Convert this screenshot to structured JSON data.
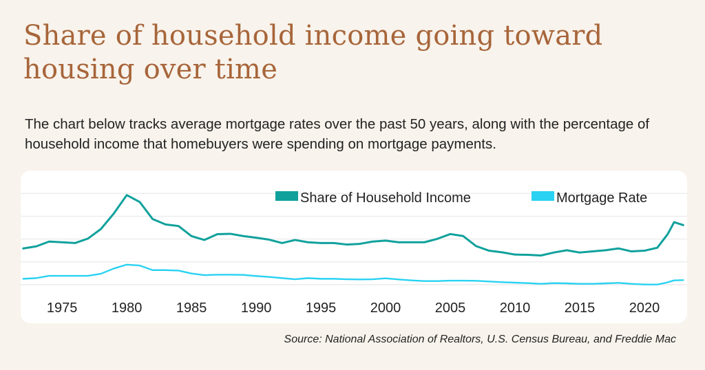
{
  "page": {
    "title": "Share of household income going toward housing over time",
    "subtitle": "The chart below tracks average mortgage rates over the past 50 years, along with the percentage of household income that homebuyers were spending on mortgage payments.",
    "source": "Source: National Association of Realtors, U.S. Census Bureau, and Freddie Mac"
  },
  "chart_data": {
    "type": "line",
    "title": "Share of household income going toward housing over time",
    "xlabel": "",
    "ylabel": "",
    "x_ticks": [
      "1975",
      "1980",
      "1985",
      "1990",
      "1995",
      "2000",
      "2005",
      "2010",
      "2015",
      "2020"
    ],
    "xlim": [
      1971.8,
      2023.3
    ],
    "ylim": [
      0,
      1
    ],
    "grid": true,
    "legend_position": "top-right",
    "series": [
      {
        "name": "Share of Household Income",
        "color": "#10a19c",
        "points": [
          {
            "x": 1972,
            "y": 0.318
          },
          {
            "x": 1973,
            "y": 0.336
          },
          {
            "x": 1974,
            "y": 0.378
          },
          {
            "x": 1975,
            "y": 0.372
          },
          {
            "x": 1976,
            "y": 0.365
          },
          {
            "x": 1977,
            "y": 0.404
          },
          {
            "x": 1978,
            "y": 0.488
          },
          {
            "x": 1979,
            "y": 0.624
          },
          {
            "x": 1980,
            "y": 0.785
          },
          {
            "x": 1981,
            "y": 0.725
          },
          {
            "x": 1982,
            "y": 0.575
          },
          {
            "x": 1983,
            "y": 0.528
          },
          {
            "x": 1984,
            "y": 0.514
          },
          {
            "x": 1985,
            "y": 0.426
          },
          {
            "x": 1986,
            "y": 0.392
          },
          {
            "x": 1987,
            "y": 0.443
          },
          {
            "x": 1988,
            "y": 0.446
          },
          {
            "x": 1989,
            "y": 0.426
          },
          {
            "x": 1990,
            "y": 0.412
          },
          {
            "x": 1991,
            "y": 0.395
          },
          {
            "x": 1992,
            "y": 0.365
          },
          {
            "x": 1993,
            "y": 0.392
          },
          {
            "x": 1994,
            "y": 0.372
          },
          {
            "x": 1995,
            "y": 0.365
          },
          {
            "x": 1996,
            "y": 0.365
          },
          {
            "x": 1997,
            "y": 0.352
          },
          {
            "x": 1998,
            "y": 0.358
          },
          {
            "x": 1999,
            "y": 0.378
          },
          {
            "x": 2000,
            "y": 0.386
          },
          {
            "x": 2001,
            "y": 0.372
          },
          {
            "x": 2002,
            "y": 0.372
          },
          {
            "x": 2003,
            "y": 0.372
          },
          {
            "x": 2004,
            "y": 0.402
          },
          {
            "x": 2005,
            "y": 0.444
          },
          {
            "x": 2006,
            "y": 0.426
          },
          {
            "x": 2007,
            "y": 0.338
          },
          {
            "x": 2008,
            "y": 0.298
          },
          {
            "x": 2009,
            "y": 0.284
          },
          {
            "x": 2010,
            "y": 0.264
          },
          {
            "x": 2011,
            "y": 0.262
          },
          {
            "x": 2012,
            "y": 0.256
          },
          {
            "x": 2013,
            "y": 0.282
          },
          {
            "x": 2014,
            "y": 0.302
          },
          {
            "x": 2015,
            "y": 0.282
          },
          {
            "x": 2016,
            "y": 0.292
          },
          {
            "x": 2017,
            "y": 0.302
          },
          {
            "x": 2018,
            "y": 0.318
          },
          {
            "x": 2019,
            "y": 0.292
          },
          {
            "x": 2020,
            "y": 0.298
          },
          {
            "x": 2021,
            "y": 0.324
          },
          {
            "x": 2021.8,
            "y": 0.443
          },
          {
            "x": 2022.3,
            "y": 0.548
          },
          {
            "x": 2023,
            "y": 0.522
          }
        ]
      },
      {
        "name": "Mortgage Rate",
        "color": "#29d2f2",
        "points": [
          {
            "x": 1972,
            "y": 0.052
          },
          {
            "x": 1973,
            "y": 0.058
          },
          {
            "x": 1974,
            "y": 0.078
          },
          {
            "x": 1975,
            "y": 0.078
          },
          {
            "x": 1976,
            "y": 0.078
          },
          {
            "x": 1977,
            "y": 0.078
          },
          {
            "x": 1978,
            "y": 0.096
          },
          {
            "x": 1979,
            "y": 0.142
          },
          {
            "x": 1980,
            "y": 0.176
          },
          {
            "x": 1981,
            "y": 0.168
          },
          {
            "x": 1982,
            "y": 0.128
          },
          {
            "x": 1983,
            "y": 0.128
          },
          {
            "x": 1984,
            "y": 0.124
          },
          {
            "x": 1985,
            "y": 0.098
          },
          {
            "x": 1986,
            "y": 0.084
          },
          {
            "x": 1987,
            "y": 0.088
          },
          {
            "x": 1988,
            "y": 0.088
          },
          {
            "x": 1989,
            "y": 0.086
          },
          {
            "x": 1990,
            "y": 0.076
          },
          {
            "x": 1991,
            "y": 0.068
          },
          {
            "x": 1992,
            "y": 0.058
          },
          {
            "x": 1993,
            "y": 0.048
          },
          {
            "x": 1994,
            "y": 0.058
          },
          {
            "x": 1995,
            "y": 0.052
          },
          {
            "x": 1996,
            "y": 0.052
          },
          {
            "x": 1997,
            "y": 0.048
          },
          {
            "x": 1998,
            "y": 0.046
          },
          {
            "x": 1999,
            "y": 0.048
          },
          {
            "x": 2000,
            "y": 0.056
          },
          {
            "x": 2001,
            "y": 0.046
          },
          {
            "x": 2002,
            "y": 0.038
          },
          {
            "x": 2003,
            "y": 0.032
          },
          {
            "x": 2004,
            "y": 0.032
          },
          {
            "x": 2005,
            "y": 0.036
          },
          {
            "x": 2006,
            "y": 0.036
          },
          {
            "x": 2007,
            "y": 0.034
          },
          {
            "x": 2008,
            "y": 0.028
          },
          {
            "x": 2009,
            "y": 0.022
          },
          {
            "x": 2010,
            "y": 0.018
          },
          {
            "x": 2011,
            "y": 0.014
          },
          {
            "x": 2012,
            "y": 0.008
          },
          {
            "x": 2013,
            "y": 0.014
          },
          {
            "x": 2014,
            "y": 0.012
          },
          {
            "x": 2015,
            "y": 0.008
          },
          {
            "x": 2016,
            "y": 0.008
          },
          {
            "x": 2017,
            "y": 0.012
          },
          {
            "x": 2018,
            "y": 0.016
          },
          {
            "x": 2019,
            "y": 0.008
          },
          {
            "x": 2020,
            "y": 0.002
          },
          {
            "x": 2021,
            "y": 0.002
          },
          {
            "x": 2021.7,
            "y": 0.018
          },
          {
            "x": 2022.3,
            "y": 0.038
          },
          {
            "x": 2023,
            "y": 0.04
          }
        ]
      }
    ]
  }
}
